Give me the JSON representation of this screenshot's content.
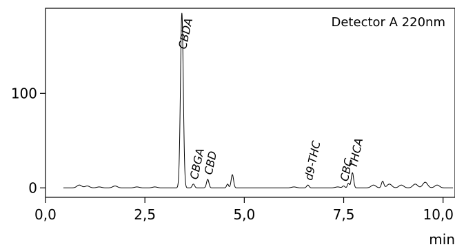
{
  "chart_data": {
    "type": "line",
    "title": "",
    "annotation": "Detector A 220nm",
    "xlabel": "min",
    "ylabel": "",
    "xlim": [
      0,
      10.3
    ],
    "ylim": [
      -10,
      190
    ],
    "x_ticks": [
      0,
      2.5,
      5.0,
      7.5,
      10.0
    ],
    "x_tick_labels": [
      "0,0",
      "2,5",
      "5,0",
      "7,5",
      "10,0"
    ],
    "y_ticks": [
      0,
      100
    ],
    "y_tick_labels": [
      "0",
      "100"
    ],
    "grid": false,
    "baseline_noise": [
      {
        "x": 0.85,
        "y": 3
      },
      {
        "x": 1.05,
        "y": 2
      },
      {
        "x": 1.35,
        "y": 1
      },
      {
        "x": 1.75,
        "y": 2
      },
      {
        "x": 2.3,
        "y": 1
      },
      {
        "x": 2.75,
        "y": 1
      },
      {
        "x": 6.25,
        "y": 1
      },
      {
        "x": 7.35,
        "y": 1
      },
      {
        "x": 8.25,
        "y": 3
      },
      {
        "x": 8.65,
        "y": 4
      },
      {
        "x": 8.95,
        "y": 3
      },
      {
        "x": 9.3,
        "y": 4
      },
      {
        "x": 9.55,
        "y": 6
      },
      {
        "x": 9.85,
        "y": 3
      }
    ],
    "peaks": [
      {
        "label": "CBDA",
        "rt": 3.43,
        "height": 185,
        "width": 0.035
      },
      {
        "label": "CBGA",
        "rt": 3.72,
        "height": 4,
        "width": 0.03
      },
      {
        "label": "CBD",
        "rt": 4.08,
        "height": 9,
        "width": 0.03
      },
      {
        "label": "",
        "rt": 4.58,
        "height": 4,
        "width": 0.025
      },
      {
        "label": "",
        "rt": 4.7,
        "height": 14,
        "width": 0.03
      },
      {
        "label": "d9-THC",
        "rt": 6.6,
        "height": 3,
        "width": 0.03
      },
      {
        "label": "CBC",
        "rt": 7.5,
        "height": 2,
        "width": 0.03
      },
      {
        "label": "",
        "rt": 7.62,
        "height": 5,
        "width": 0.025
      },
      {
        "label": "THCA",
        "rt": 7.72,
        "height": 16,
        "width": 0.03
      },
      {
        "label": "",
        "rt": 8.48,
        "height": 7,
        "width": 0.03
      }
    ]
  }
}
